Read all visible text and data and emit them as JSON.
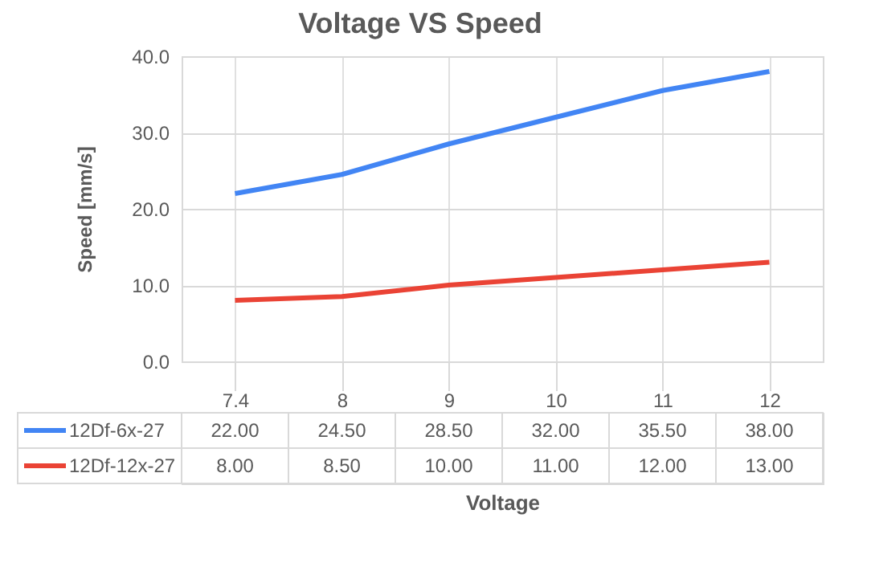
{
  "chart_data": {
    "type": "line",
    "title": "Voltage VS Speed",
    "xlabel": "Voltage",
    "ylabel": "Speed [mm/s]",
    "categories": [
      "7.4",
      "8",
      "9",
      "10",
      "11",
      "12"
    ],
    "series": [
      {
        "name": "12Df-6x-27",
        "color": "#4285f4",
        "values": [
          22,
          24.5,
          28.5,
          32,
          35.5,
          38
        ],
        "value_labels": [
          "22.00",
          "24.50",
          "28.50",
          "32.00",
          "35.50",
          "38.00"
        ]
      },
      {
        "name": "12Df-12x-27",
        "color": "#ea4335",
        "values": [
          8,
          8.5,
          10,
          11,
          12,
          13
        ],
        "value_labels": [
          "8.00",
          "8.50",
          "10.00",
          "11.00",
          "12.00",
          "13.00"
        ]
      }
    ],
    "ylim": [
      0,
      40
    ],
    "yticks": [
      {
        "value": 0,
        "label": "0.0"
      },
      {
        "value": 10,
        "label": "10.0"
      },
      {
        "value": 20,
        "label": "20.0"
      },
      {
        "value": 30,
        "label": "30.0"
      },
      {
        "value": 40,
        "label": "40.0"
      }
    ],
    "grid": true,
    "legend": "bottom",
    "marker": "none",
    "line_style": "solid"
  }
}
